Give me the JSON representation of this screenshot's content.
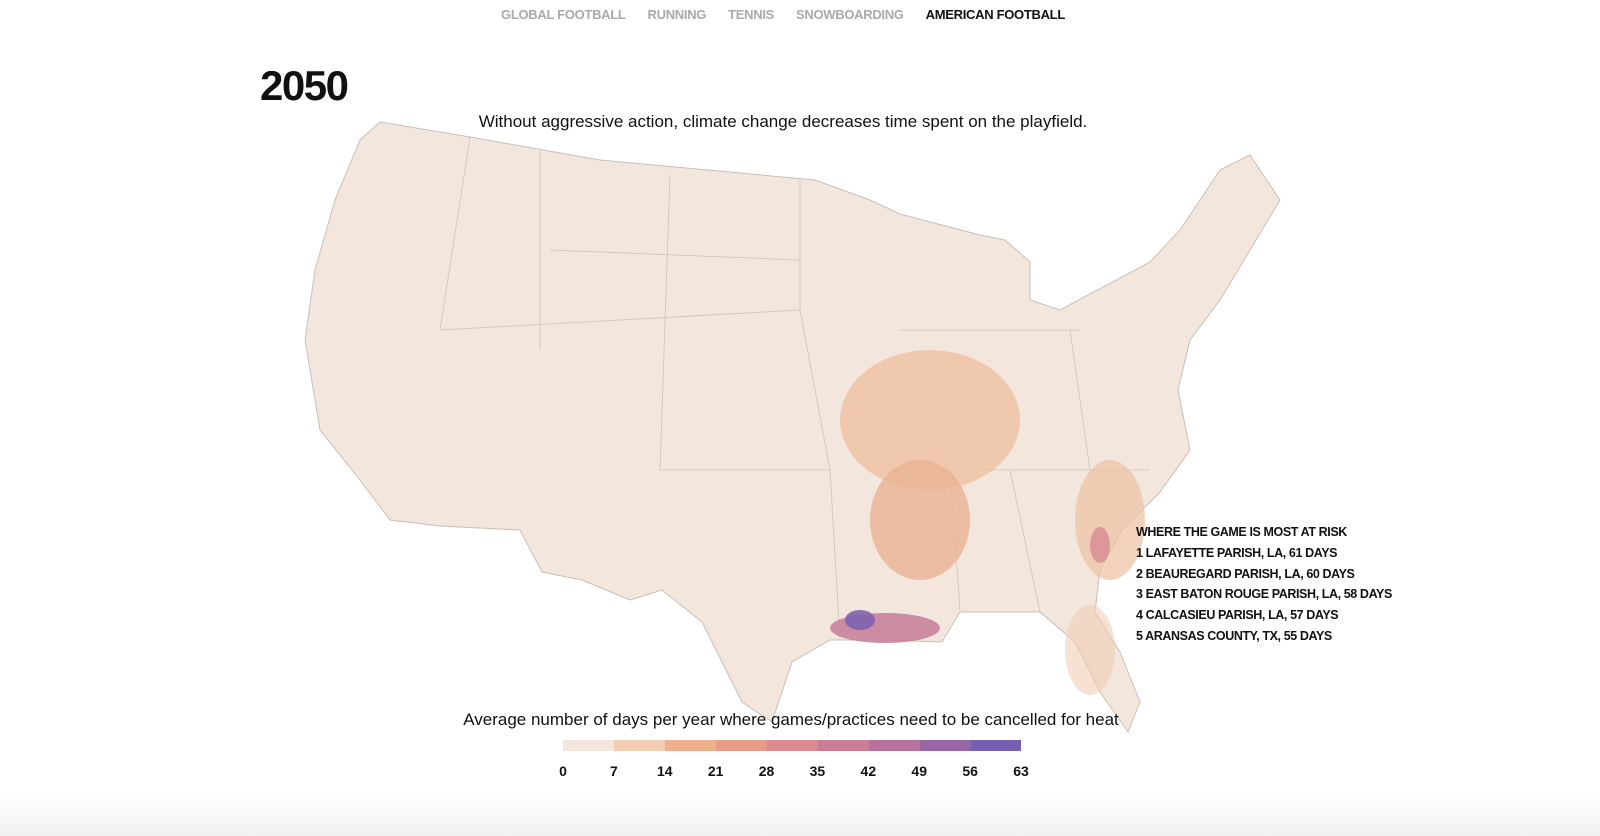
{
  "nav": {
    "items": [
      "GLOBAL FOOTBALL",
      "RUNNING",
      "TENNIS",
      "SNOWBOARDING",
      "AMERICAN FOOTBALL"
    ],
    "active": 4
  },
  "year": "2050",
  "subtitle": "Without aggressive action, climate change decreases time spent on the playfield.",
  "risk_list": {
    "title": "WHERE THE GAME IS MOST AT RISK",
    "items": [
      "1 LAFAYETTE PARISH, LA, 61 DAYS",
      "2 BEAUREGARD PARISH, LA, 60 DAYS",
      "3 EAST BATON ROUGE PARISH, LA, 58 DAYS",
      "4 CALCASIEU PARISH, LA, 57 DAYS",
      "5 ARANSAS COUNTY, TX, 55 DAYS"
    ]
  },
  "legend": {
    "title": "Average number of days per year where games/practices need to be cancelled for heat",
    "ticks": [
      0,
      7,
      14,
      21,
      28,
      35,
      42,
      49,
      56,
      63
    ],
    "colors": [
      "#f5e6dc",
      "#f2cdb2",
      "#edb08a",
      "#e89c88",
      "#dd8990",
      "#cc7d96",
      "#b8719d",
      "#9967a6",
      "#7760b2"
    ]
  }
}
